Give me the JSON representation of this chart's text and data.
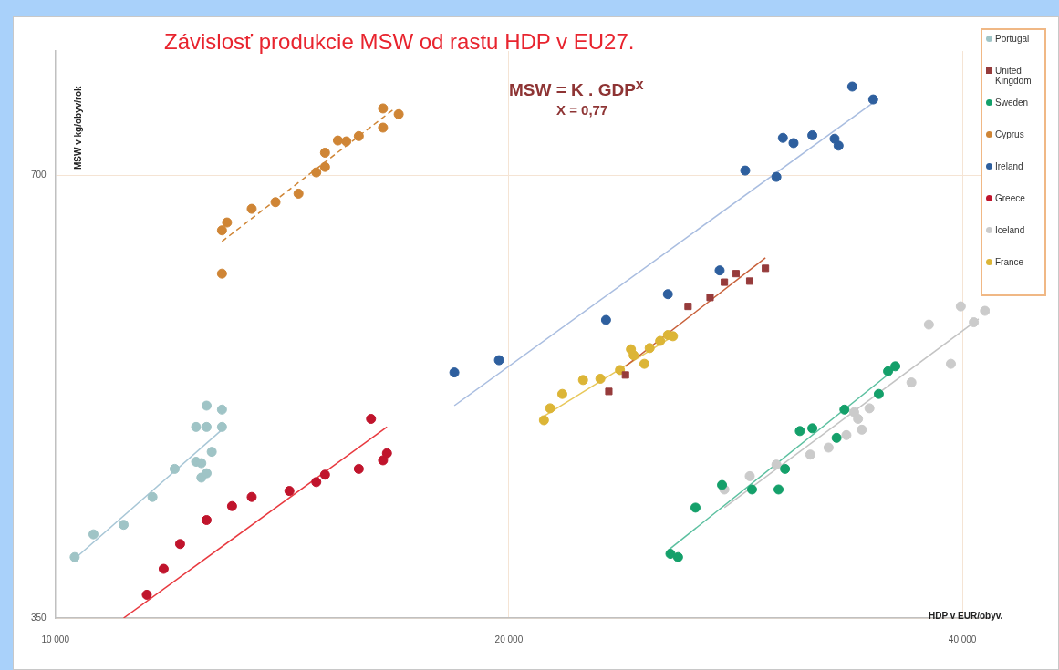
{
  "chart_data": {
    "type": "scatter",
    "title": "Závislosť produkcie MSW od rastu HDP v EU27.",
    "xlabel": "HDP v EUR/obyv.",
    "ylabel": "MSW v kg/obyv/rok",
    "annotations": [
      "MSW = K . GDP$^{x}$",
      "X = 0,77"
    ],
    "log": "xy",
    "xlim": [
      10000,
      41700
    ],
    "ylim": [
      350,
      850
    ],
    "xticks": [
      {
        "value": 10000,
        "label": "10 000"
      },
      {
        "value": 20000,
        "label": "20 000"
      },
      {
        "value": 40000,
        "label": "40 000"
      }
    ],
    "yticks": [
      350,
      700
    ],
    "grid": true,
    "legend": "top right",
    "marker": "circle",
    "series": [
      {
        "name": "Portugal",
        "color": "#9fc4c6",
        "x": [
          10300,
          10600,
          11100,
          11600,
          12000,
          12400,
          12500,
          12500,
          12600,
          12700,
          12400,
          12600,
          12900,
          12600,
          12900
        ],
        "values": [
          385,
          399,
          405,
          423,
          442,
          447,
          446,
          436,
          439,
          454,
          472,
          472,
          472,
          488,
          485
        ]
      },
      {
        "name": "United Kingdom",
        "color": "#963b3b",
        "marker": "square",
        "x": [
          29600,
          28900,
          28300,
          27800,
          27200,
          26300,
          23900,
          23300
        ],
        "values": [
          605,
          593,
          600,
          592,
          578,
          570,
          512,
          499
        ]
      },
      {
        "name": "Sweden",
        "color": "#14a06a",
        "x": [
          25600,
          25900,
          26600,
          27700,
          29000,
          30200,
          30500,
          31200,
          31800,
          33000,
          33400,
          35200,
          35700,
          36100
        ],
        "values": [
          387,
          385,
          416,
          431,
          428,
          428,
          442,
          469,
          471,
          464,
          485,
          497,
          515,
          519
        ]
      },
      {
        "name": "Cyprus",
        "color": "#cf8535",
        "x": [
          12900,
          12900,
          13000,
          13500,
          14000,
          14500,
          14900,
          15100,
          15100,
          15400,
          15600,
          15900,
          16500,
          16500,
          16900
        ],
        "values": [
          600,
          642,
          650,
          664,
          671,
          680,
          703,
          709,
          725,
          739,
          738,
          744,
          754,
          777,
          770
        ]
      },
      {
        "name": "Ireland",
        "color": "#2e5f9e",
        "x": [
          33800,
          34900,
          30400,
          30900,
          31800,
          32900,
          33100,
          28700,
          30100,
          27600,
          25500,
          23200,
          18400,
          19700
        ],
        "values": [
          804,
          788,
          742,
          736,
          745,
          741,
          733,
          705,
          698,
          603,
          581,
          558,
          514,
          524
        ]
      },
      {
        "name": "Greece",
        "color": "#c0142c",
        "x": [
          11500,
          11800,
          12100,
          12600,
          13100,
          13500,
          14300,
          14900,
          15100,
          15900,
          16200,
          16500,
          16600
        ],
        "values": [
          363,
          378,
          393,
          408,
          417,
          423,
          427,
          433,
          438,
          442,
          478,
          448,
          453
        ]
      },
      {
        "name": "Iceland",
        "color": "#cbcbcb",
        "x": [
          27800,
          28900,
          30100,
          31700,
          32600,
          33500,
          34300,
          34100,
          33900,
          34700,
          37000,
          39300,
          38000,
          39900,
          40700,
          41400
        ],
        "values": [
          428,
          437,
          445,
          452,
          457,
          466,
          470,
          478,
          483,
          486,
          506,
          521,
          554,
          570,
          556,
          566
        ]
      },
      {
        "name": "France",
        "color": "#dcb536",
        "x": [
          21100,
          21300,
          21700,
          22400,
          23000,
          23700,
          24200,
          24100,
          24600,
          24800,
          25200,
          25700,
          25500
        ],
        "values": [
          477,
          486,
          497,
          508,
          509,
          516,
          528,
          533,
          521,
          534,
          540,
          544,
          545
        ]
      },
      {
        "type": "line",
        "marker": "none",
        "color": "#a7c6d6",
        "x": [
          10300,
          12900
        ],
        "values": [
          384,
          470
        ]
      },
      {
        "type": "line",
        "marker": "none",
        "color": "#c8603a",
        "x": [
          23900,
          29600
        ],
        "values": [
          519,
          615
        ]
      },
      {
        "type": "line",
        "marker": "none",
        "color": "#5cc0a0",
        "x": [
          25500,
          36100
        ],
        "values": [
          389,
          517
        ]
      },
      {
        "type": "line",
        "marker": "none",
        "color": "#cf8535",
        "line_style": "dashed",
        "x": [
          12900,
          16800
        ],
        "values": [
          631,
          777
        ]
      },
      {
        "type": "line",
        "marker": "none",
        "color": "#a9bde0",
        "x": [
          18400,
          34900
        ],
        "values": [
          488,
          784
        ]
      },
      {
        "type": "line",
        "marker": "none",
        "color": "#e8393f",
        "x": [
          11100,
          16600
        ],
        "values": [
          350,
          472
        ]
      },
      {
        "type": "line",
        "marker": "none",
        "color": "#c4c4c4",
        "x": [
          27800,
          41000
        ],
        "values": [
          416,
          559
        ]
      },
      {
        "type": "line",
        "marker": "none",
        "color": "#e8c85a",
        "x": [
          21100,
          25700
        ],
        "values": [
          480,
          544
        ]
      }
    ]
  }
}
